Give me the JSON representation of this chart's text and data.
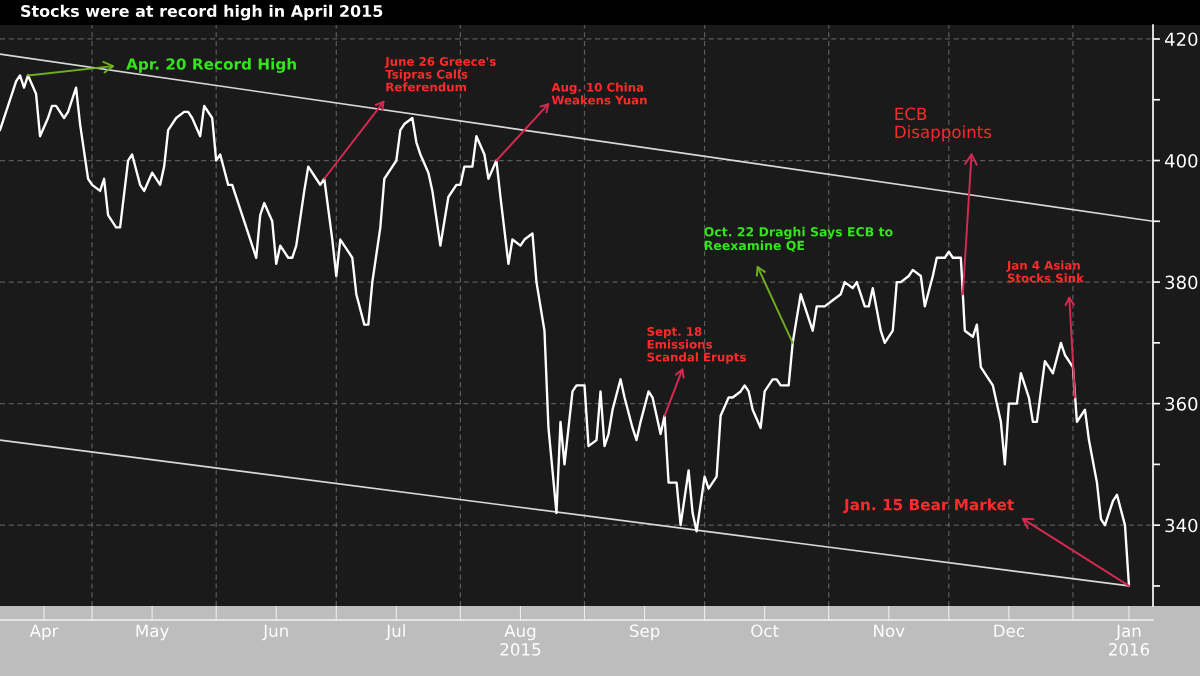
{
  "chart_data": {
    "type": "line",
    "title": "Stocks were at record high in April 2015",
    "series": [
      {
        "color": "#ffffff",
        "x": [
          "2015-04-08",
          "2015-04-10",
          "2015-04-12",
          "2015-04-13",
          "2015-04-14",
          "2015-04-15",
          "2015-04-17",
          "2015-04-18",
          "2015-04-20",
          "2015-04-21",
          "2015-04-22",
          "2015-04-24",
          "2015-04-25",
          "2015-04-27",
          "2015-04-28",
          "2015-04-30",
          "2015-05-01",
          "2015-05-03",
          "2015-05-04",
          "2015-05-05",
          "2015-05-07",
          "2015-05-08",
          "2015-05-10",
          "2015-05-11",
          "2015-05-13",
          "2015-05-14",
          "2015-05-16",
          "2015-05-18",
          "2015-05-19",
          "2015-05-20",
          "2015-05-22",
          "2015-05-24",
          "2015-05-25",
          "2015-05-26",
          "2015-05-28",
          "2015-05-29",
          "2015-05-31",
          "2015-06-01",
          "2015-06-02",
          "2015-06-04",
          "2015-06-05",
          "2015-06-07",
          "2015-06-09",
          "2015-06-11",
          "2015-06-12",
          "2015-06-13",
          "2015-06-15",
          "2015-06-16",
          "2015-06-17",
          "2015-06-19",
          "2015-06-20",
          "2015-06-21",
          "2015-06-23",
          "2015-06-24",
          "2015-06-26",
          "2015-06-27",
          "2015-06-28",
          "2015-06-30",
          "2015-07-01",
          "2015-07-02",
          "2015-07-04",
          "2015-07-05",
          "2015-07-06",
          "2015-07-08",
          "2015-07-09",
          "2015-07-10",
          "2015-07-12",
          "2015-07-13",
          "2015-07-15",
          "2015-07-16",
          "2015-07-17",
          "2015-07-18",
          "2015-07-20",
          "2015-07-21",
          "2015-07-22",
          "2015-07-24",
          "2015-07-25",
          "2015-07-27",
          "2015-07-28",
          "2015-07-29",
          "2015-07-31",
          "2015-08-01",
          "2015-08-02",
          "2015-08-04",
          "2015-08-05",
          "2015-08-07",
          "2015-08-08",
          "2015-08-10",
          "2015-08-11",
          "2015-08-13",
          "2015-08-14",
          "2015-08-16",
          "2015-08-17",
          "2015-08-19",
          "2015-08-20",
          "2015-08-22",
          "2015-08-23",
          "2015-08-25",
          "2015-08-26",
          "2015-08-27",
          "2015-08-29",
          "2015-08-30",
          "2015-09-01",
          "2015-09-02",
          "2015-09-04",
          "2015-09-05",
          "2015-09-06",
          "2015-09-07",
          "2015-09-08",
          "2015-09-10",
          "2015-09-11",
          "2015-09-13",
          "2015-09-14",
          "2015-09-15",
          "2015-09-17",
          "2015-09-18",
          "2015-09-20",
          "2015-09-21",
          "2015-09-22",
          "2015-09-24",
          "2015-09-25",
          "2015-09-27",
          "2015-09-28",
          "2015-09-29",
          "2015-10-01",
          "2015-10-02",
          "2015-10-04",
          "2015-10-05",
          "2015-10-07",
          "2015-10-08",
          "2015-10-10",
          "2015-10-11",
          "2015-10-12",
          "2015-10-13",
          "2015-10-15",
          "2015-10-16",
          "2015-10-18",
          "2015-10-19",
          "2015-10-20",
          "2015-10-22",
          "2015-10-23",
          "2015-10-25",
          "2015-10-26",
          "2015-10-28",
          "2015-10-29",
          "2015-10-31",
          "2015-11-02",
          "2015-11-04",
          "2015-11-05",
          "2015-11-07",
          "2015-11-08",
          "2015-11-10",
          "2015-11-11",
          "2015-11-12",
          "2015-11-14",
          "2015-11-15",
          "2015-11-17",
          "2015-11-18",
          "2015-11-19",
          "2015-11-21",
          "2015-11-22",
          "2015-11-24",
          "2015-11-25",
          "2015-11-27",
          "2015-11-28",
          "2015-11-30",
          "2015-12-01",
          "2015-12-02",
          "2015-12-04",
          "2015-12-05",
          "2015-12-07",
          "2015-12-08",
          "2015-12-09",
          "2015-12-11",
          "2015-12-12",
          "2015-12-14",
          "2015-12-15",
          "2015-12-16",
          "2015-12-18",
          "2015-12-19",
          "2015-12-21",
          "2015-12-22",
          "2015-12-23",
          "2015-12-25",
          "2015-12-26",
          "2015-12-27",
          "2015-12-29",
          "2015-12-30",
          "2016-01-01",
          "2016-01-02",
          "2016-01-04",
          "2016-01-05",
          "2016-01-07",
          "2016-01-08",
          "2016-01-09",
          "2016-01-11",
          "2016-01-12",
          "2016-01-14",
          "2016-01-15"
        ],
        "values": [
          405,
          409,
          413,
          414,
          412,
          414,
          411,
          404,
          407,
          409,
          409,
          407,
          408,
          412,
          406,
          397,
          396,
          395,
          397,
          391,
          389,
          389,
          400,
          401,
          396,
          395,
          398,
          396,
          399,
          405,
          407,
          408,
          408,
          407,
          404,
          409,
          407,
          400,
          401,
          396,
          396,
          392,
          388,
          384,
          391,
          393,
          390,
          383,
          386,
          384,
          384,
          386,
          395,
          399,
          397,
          396,
          397,
          387,
          381,
          387,
          385,
          384,
          378,
          373,
          373,
          380,
          389,
          397,
          399,
          400,
          405,
          406,
          407,
          403,
          401,
          398,
          395,
          386,
          390,
          394,
          396,
          396,
          399,
          399,
          404,
          401,
          397,
          400,
          394,
          383,
          387,
          386,
          387,
          388,
          380,
          372,
          356,
          342,
          357,
          350,
          362,
          363,
          363,
          353,
          354,
          362,
          353,
          355,
          359,
          364,
          361,
          356,
          354,
          357,
          362,
          361,
          355,
          358,
          347,
          347,
          340,
          349,
          342,
          339,
          348,
          346,
          348,
          358,
          361,
          361,
          362,
          363,
          362,
          359,
          356,
          362,
          364,
          364,
          363,
          363,
          370,
          378,
          376,
          372,
          376,
          376,
          377,
          378,
          380,
          379,
          380,
          376,
          376,
          379,
          372,
          370,
          372,
          380,
          380,
          381,
          382,
          381,
          376,
          381,
          384,
          384,
          385,
          384,
          384,
          372,
          371,
          373,
          366,
          364,
          363,
          357,
          350,
          360,
          360,
          365,
          361,
          357,
          357,
          367,
          366,
          365,
          370,
          368,
          366,
          357,
          359,
          354,
          347,
          341,
          340,
          344,
          345,
          340,
          330
        ]
      },
      {
        "color": "#d9d9d9",
        "x": [
          "2015-04-08",
          "2016-01-21"
        ],
        "values": [
          417.5,
          390
        ]
      },
      {
        "color": "#d9d9d9",
        "x": [
          "2015-04-08",
          "2016-01-15"
        ],
        "values": [
          354,
          330
        ]
      }
    ],
    "xlim": [
      "2015-04-08",
      "2016-01-21"
    ],
    "xticks": [
      {
        "value": "2015-04-19",
        "label": "Apr"
      },
      {
        "value": "2015-05-01",
        "label": null
      },
      {
        "value": "2015-05-16",
        "label": "May"
      },
      {
        "value": "2015-06-01",
        "label": null
      },
      {
        "value": "2015-06-16",
        "label": "Jun"
      },
      {
        "value": "2015-07-01",
        "label": null
      },
      {
        "value": "2015-07-16",
        "label": "Jul"
      },
      {
        "value": "2015-08-01",
        "label": null
      },
      {
        "value": "2015-08-16",
        "label": "Aug\n2015"
      },
      {
        "value": "2015-09-01",
        "label": null
      },
      {
        "value": "2015-09-16",
        "label": "Sep"
      },
      {
        "value": "2015-10-01",
        "label": null
      },
      {
        "value": "2015-10-16",
        "label": "Oct"
      },
      {
        "value": "2015-11-01",
        "label": null
      },
      {
        "value": "2015-11-16",
        "label": "Nov"
      },
      {
        "value": "2015-12-01",
        "label": null
      },
      {
        "value": "2015-12-16",
        "label": "Dec"
      },
      {
        "value": "2016-01-01",
        "label": null
      },
      {
        "value": "2016-01-15",
        "label": "Jan\n2016"
      }
    ],
    "ylim": [
      326.7,
      422.3
    ],
    "yticks": [
      {
        "value": 330,
        "label": null
      },
      340,
      {
        "value": 350,
        "label": null
      },
      360,
      {
        "value": 370,
        "label": null
      },
      380,
      {
        "value": 390,
        "label": null
      },
      400,
      {
        "value": 410,
        "label": null
      },
      420
    ],
    "grid": true,
    "annotations": [
      {
        "text": "Apr. 20 Record High",
        "x": "2015-04-15",
        "y": 414
      },
      {
        "text": "June 26 Greece's\nTsipras Calls\nReferendum",
        "x": "2015-06-28",
        "y": 397
      },
      {
        "text": "Aug. 10 China\nWeakens Yuan",
        "x": "2015-08-10",
        "y": 400
      },
      {
        "text": "Sept. 18\nEmissions\nScandal Erupts",
        "x": "2015-09-21",
        "y": 358
      },
      {
        "text": "Oct. 22 Draghi Says ECB to\nReexamine QE",
        "x": "2015-10-23",
        "y": 370
      },
      {
        "text": "ECB\nDisappoints",
        "x": "2015-12-04T12:00",
        "y": 378
      },
      {
        "text": "Jan 4 Asian\nStocks Sink",
        "x": "2016-01-01T12:00",
        "y": 361
      },
      {
        "text": "Jan. 15 Bear Market",
        "x": "2016-01-15",
        "y": 330
      }
    ]
  }
}
